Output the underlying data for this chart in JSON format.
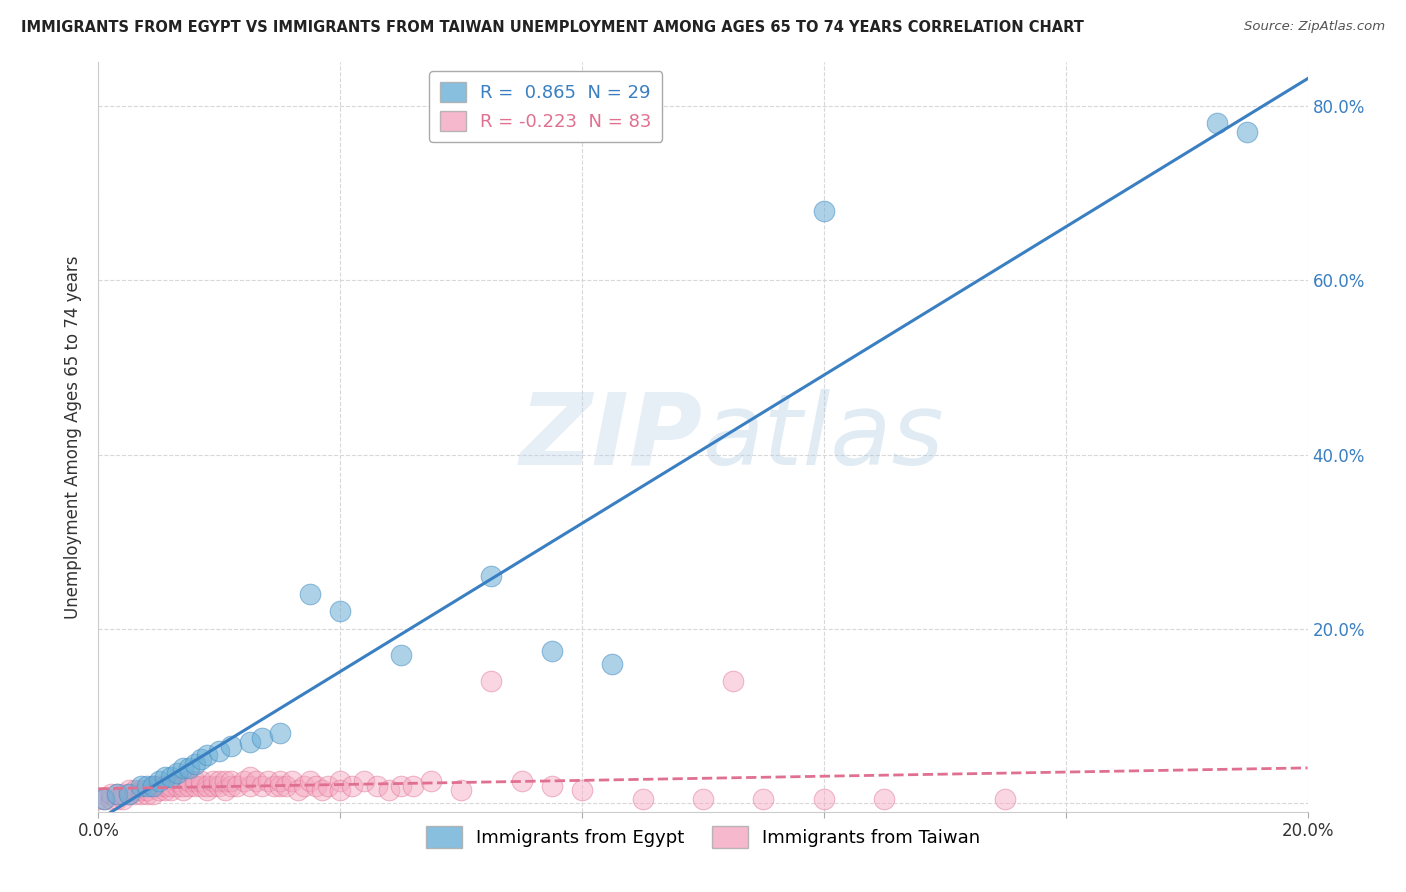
{
  "title": "IMMIGRANTS FROM EGYPT VS IMMIGRANTS FROM TAIWAN UNEMPLOYMENT AMONG AGES 65 TO 74 YEARS CORRELATION CHART",
  "source": "Source: ZipAtlas.com",
  "ylabel": "Unemployment Among Ages 65 to 74 years",
  "x_min": 0.0,
  "x_max": 0.2,
  "y_min": -0.01,
  "y_max": 0.85,
  "egypt_color": "#6aaed6",
  "egypt_edge_color": "#4a90c4",
  "taiwan_color": "#f4a6c0",
  "taiwan_edge_color": "#e07090",
  "egypt_line_color": "#3a7fc1",
  "taiwan_line_color": "#e07090",
  "legend_R1": "R =  0.865  N = 29",
  "legend_R2": "R = -0.223  N = 83",
  "legend_text_color_1": "#3a7fc1",
  "legend_text_color_2": "#e07090",
  "watermark": "ZIPatlas",
  "background_color": "#ffffff",
  "grid_color": "#d8d8d8",
  "egypt_scatter": [
    [
      0.001,
      0.005
    ],
    [
      0.003,
      0.01
    ],
    [
      0.005,
      0.01
    ],
    [
      0.007,
      0.02
    ],
    [
      0.008,
      0.02
    ],
    [
      0.009,
      0.02
    ],
    [
      0.01,
      0.025
    ],
    [
      0.011,
      0.03
    ],
    [
      0.012,
      0.03
    ],
    [
      0.013,
      0.035
    ],
    [
      0.014,
      0.04
    ],
    [
      0.015,
      0.04
    ],
    [
      0.016,
      0.045
    ],
    [
      0.017,
      0.05
    ],
    [
      0.018,
      0.055
    ],
    [
      0.02,
      0.06
    ],
    [
      0.022,
      0.065
    ],
    [
      0.025,
      0.07
    ],
    [
      0.027,
      0.075
    ],
    [
      0.03,
      0.08
    ],
    [
      0.035,
      0.24
    ],
    [
      0.04,
      0.22
    ],
    [
      0.05,
      0.17
    ],
    [
      0.065,
      0.26
    ],
    [
      0.075,
      0.175
    ],
    [
      0.085,
      0.16
    ],
    [
      0.12,
      0.68
    ],
    [
      0.185,
      0.78
    ],
    [
      0.19,
      0.77
    ]
  ],
  "taiwan_scatter": [
    [
      0.0,
      0.005
    ],
    [
      0.001,
      0.005
    ],
    [
      0.002,
      0.005
    ],
    [
      0.002,
      0.01
    ],
    [
      0.003,
      0.005
    ],
    [
      0.003,
      0.01
    ],
    [
      0.004,
      0.005
    ],
    [
      0.004,
      0.01
    ],
    [
      0.005,
      0.01
    ],
    [
      0.005,
      0.015
    ],
    [
      0.006,
      0.01
    ],
    [
      0.006,
      0.015
    ],
    [
      0.007,
      0.01
    ],
    [
      0.007,
      0.015
    ],
    [
      0.008,
      0.01
    ],
    [
      0.008,
      0.015
    ],
    [
      0.009,
      0.01
    ],
    [
      0.009,
      0.02
    ],
    [
      0.01,
      0.015
    ],
    [
      0.01,
      0.02
    ],
    [
      0.011,
      0.015
    ],
    [
      0.011,
      0.02
    ],
    [
      0.012,
      0.015
    ],
    [
      0.012,
      0.02
    ],
    [
      0.013,
      0.02
    ],
    [
      0.013,
      0.025
    ],
    [
      0.014,
      0.015
    ],
    [
      0.014,
      0.02
    ],
    [
      0.015,
      0.02
    ],
    [
      0.015,
      0.025
    ],
    [
      0.016,
      0.02
    ],
    [
      0.016,
      0.025
    ],
    [
      0.017,
      0.02
    ],
    [
      0.017,
      0.025
    ],
    [
      0.018,
      0.015
    ],
    [
      0.018,
      0.02
    ],
    [
      0.019,
      0.02
    ],
    [
      0.019,
      0.025
    ],
    [
      0.02,
      0.02
    ],
    [
      0.02,
      0.025
    ],
    [
      0.021,
      0.015
    ],
    [
      0.021,
      0.025
    ],
    [
      0.022,
      0.02
    ],
    [
      0.022,
      0.025
    ],
    [
      0.023,
      0.02
    ],
    [
      0.024,
      0.025
    ],
    [
      0.025,
      0.02
    ],
    [
      0.025,
      0.03
    ],
    [
      0.026,
      0.025
    ],
    [
      0.027,
      0.02
    ],
    [
      0.028,
      0.025
    ],
    [
      0.029,
      0.02
    ],
    [
      0.03,
      0.02
    ],
    [
      0.03,
      0.025
    ],
    [
      0.031,
      0.02
    ],
    [
      0.032,
      0.025
    ],
    [
      0.033,
      0.015
    ],
    [
      0.034,
      0.02
    ],
    [
      0.035,
      0.025
    ],
    [
      0.036,
      0.02
    ],
    [
      0.037,
      0.015
    ],
    [
      0.038,
      0.02
    ],
    [
      0.04,
      0.025
    ],
    [
      0.04,
      0.015
    ],
    [
      0.042,
      0.02
    ],
    [
      0.044,
      0.025
    ],
    [
      0.046,
      0.02
    ],
    [
      0.048,
      0.015
    ],
    [
      0.05,
      0.02
    ],
    [
      0.052,
      0.02
    ],
    [
      0.055,
      0.025
    ],
    [
      0.06,
      0.015
    ],
    [
      0.065,
      0.14
    ],
    [
      0.07,
      0.025
    ],
    [
      0.075,
      0.02
    ],
    [
      0.08,
      0.015
    ],
    [
      0.09,
      0.005
    ],
    [
      0.1,
      0.005
    ],
    [
      0.105,
      0.14
    ],
    [
      0.11,
      0.005
    ],
    [
      0.12,
      0.005
    ],
    [
      0.13,
      0.005
    ],
    [
      0.15,
      0.005
    ]
  ]
}
